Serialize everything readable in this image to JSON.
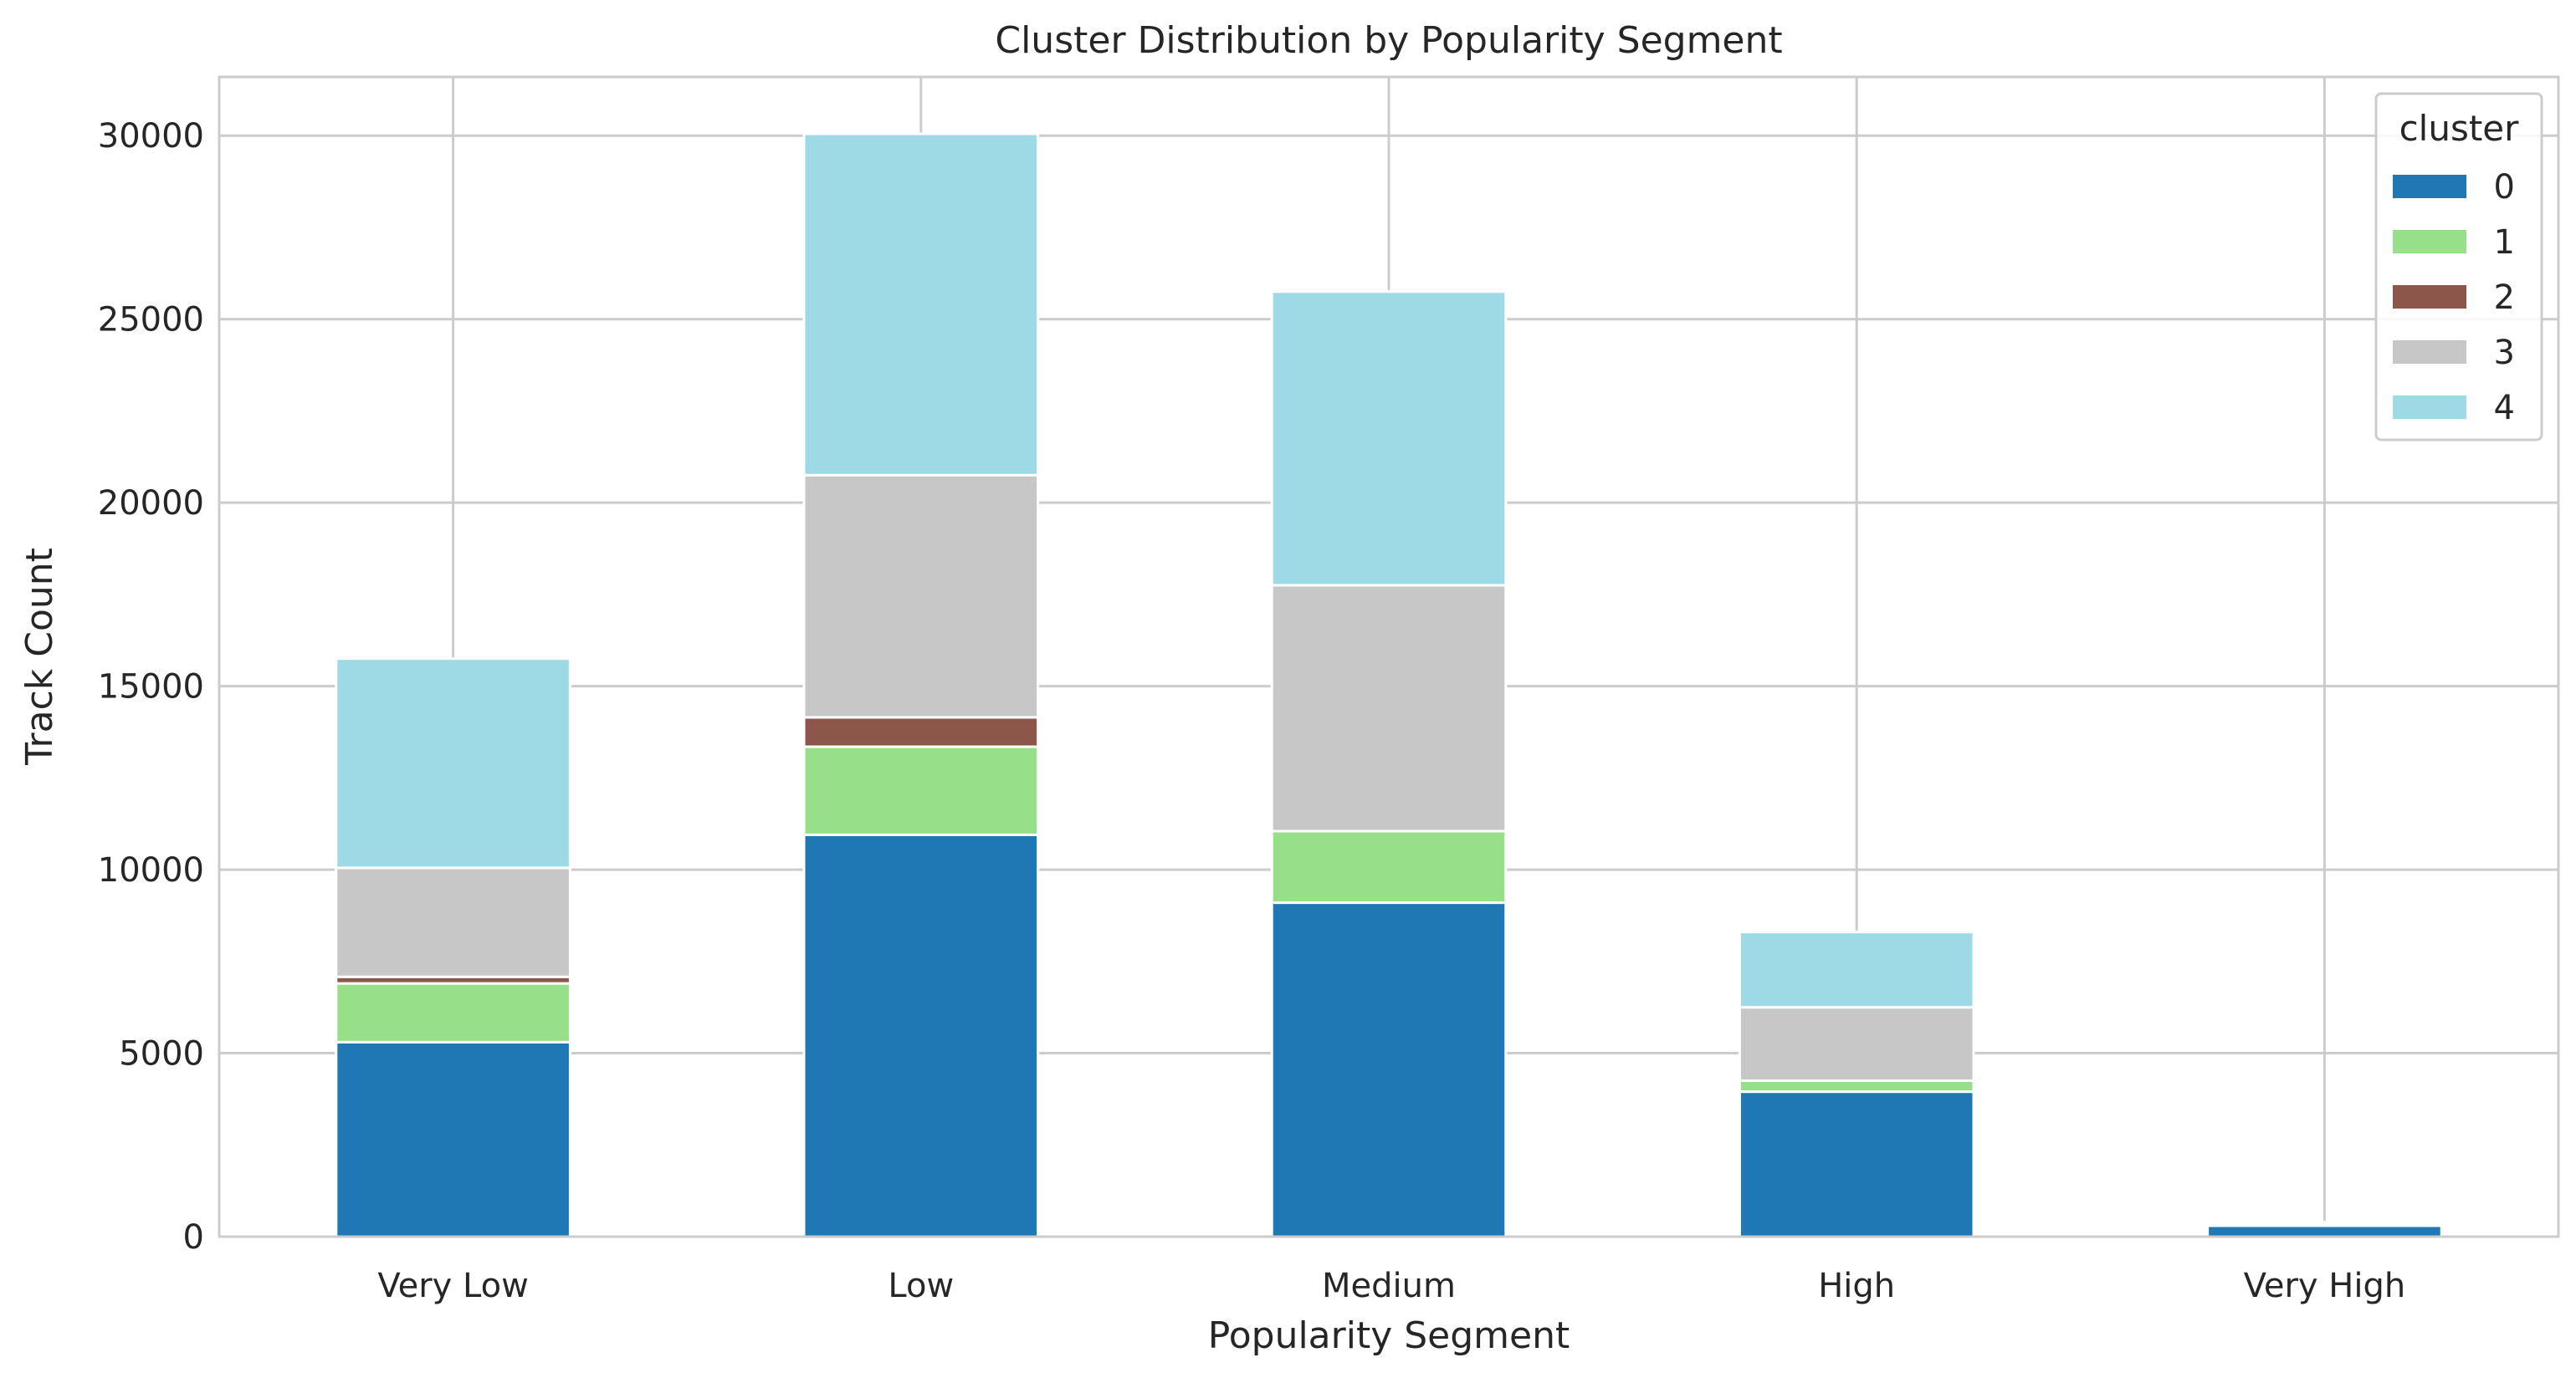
{
  "chart_data": {
    "type": "bar",
    "stacked": true,
    "title": "Cluster Distribution by Popularity Segment",
    "xlabel": "Popularity Segment",
    "ylabel": "Track Count",
    "categories": [
      "Very Low",
      "Low",
      "Medium",
      "High",
      "Very High"
    ],
    "ylim": [
      0,
      31600
    ],
    "yticks": [
      0,
      5000,
      10000,
      15000,
      20000,
      25000,
      30000
    ],
    "ytick_labels": [
      "0",
      "5000",
      "10000",
      "15000",
      "20000",
      "25000",
      "30000"
    ],
    "grid": true,
    "legend": {
      "title": "cluster",
      "position": "top-right"
    },
    "series": [
      {
        "name": "0",
        "color": "#1f77b4",
        "values": [
          5300,
          10950,
          9100,
          3950,
          300
        ]
      },
      {
        "name": "1",
        "color": "#98df8a",
        "values": [
          1600,
          2400,
          1950,
          300,
          0
        ]
      },
      {
        "name": "2",
        "color": "#8c564b",
        "values": [
          180,
          800,
          0,
          0,
          0
        ]
      },
      {
        "name": "3",
        "color": "#c7c7c7",
        "values": [
          2970,
          6600,
          6700,
          2000,
          50
        ]
      },
      {
        "name": "4",
        "color": "#9edae5",
        "values": [
          5700,
          9300,
          8000,
          2050,
          50
        ]
      }
    ]
  }
}
